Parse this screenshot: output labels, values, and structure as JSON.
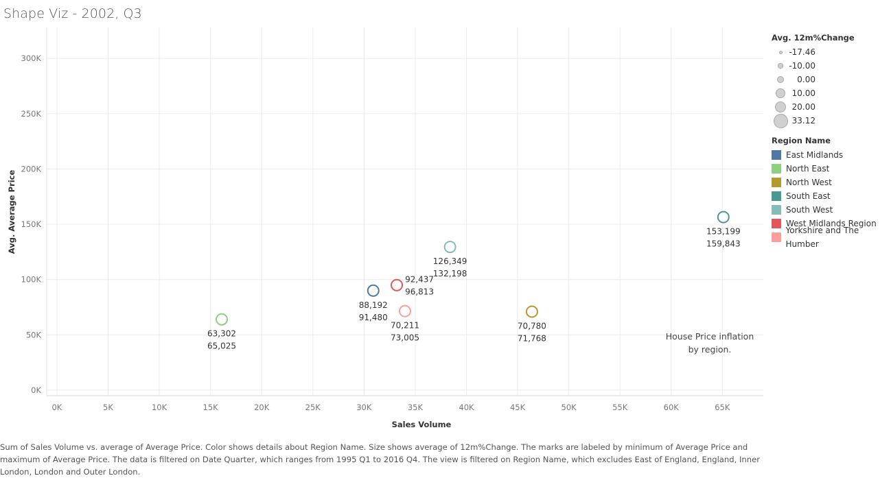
{
  "title": "Shape Viz - 2002, Q3",
  "chart_data": {
    "type": "scatter",
    "xlabel": "Sales Volume",
    "ylabel": "Avg. Average Price",
    "xlim": [
      -1000,
      69000
    ],
    "ylim": [
      -5000,
      328000
    ],
    "x_ticks": [
      0,
      5000,
      10000,
      15000,
      20000,
      25000,
      30000,
      35000,
      40000,
      45000,
      50000,
      55000,
      60000,
      65000
    ],
    "x_tick_labels": [
      "0K",
      "5K",
      "10K",
      "15K",
      "20K",
      "25K",
      "30K",
      "35K",
      "40K",
      "45K",
      "50K",
      "55K",
      "60K",
      "65K"
    ],
    "y_ticks": [
      0,
      50000,
      100000,
      150000,
      200000,
      250000,
      300000
    ],
    "y_tick_labels": [
      "0K",
      "50K",
      "100K",
      "150K",
      "200K",
      "250K",
      "300K"
    ],
    "grid": true,
    "annotation": [
      "House Price inflation",
      "by region."
    ],
    "points": [
      {
        "region": "North East",
        "x": 16100,
        "y": 64000,
        "label": [
          "63,302",
          "65,025"
        ],
        "label_pos": "below"
      },
      {
        "region": "East Midlands",
        "x": 30900,
        "y": 90000,
        "label": [
          "88,192",
          "91,480"
        ],
        "label_pos": "below"
      },
      {
        "region": "West Midlands Region",
        "x": 33200,
        "y": 95000,
        "label": [
          "92,437",
          "96,813"
        ],
        "label_pos": "right"
      },
      {
        "region": "Yorkshire and The Humber",
        "x": 34000,
        "y": 71500,
        "label": [
          "70,211",
          "73,005"
        ],
        "label_pos": "below"
      },
      {
        "region": "South West",
        "x": 38400,
        "y": 129500,
        "label": [
          "126,349",
          "132,198"
        ],
        "label_pos": "below"
      },
      {
        "region": "North West",
        "x": 46400,
        "y": 71000,
        "label": [
          "70,780",
          "71,768"
        ],
        "label_pos": "below"
      },
      {
        "region": "South East",
        "x": 65100,
        "y": 156500,
        "label": [
          "153,199",
          "159,843"
        ],
        "label_pos": "below"
      }
    ]
  },
  "size_legend": {
    "title": "Avg. 12m%Change",
    "items": [
      {
        "label": "-17.46",
        "value": -17.46
      },
      {
        "label": "-10.00",
        "value": -10.0
      },
      {
        "label": "0.00",
        "value": 0.0
      },
      {
        "label": "10.00",
        "value": 10.0
      },
      {
        "label": "20.00",
        "value": 20.0
      },
      {
        "label": "33.12",
        "value": 33.12
      }
    ]
  },
  "color_legend": {
    "title": "Region Name",
    "items": [
      {
        "label": "East Midlands",
        "color": "#4e79a7"
      },
      {
        "label": "North East",
        "color": "#8cd17d"
      },
      {
        "label": "North West",
        "color": "#b6992d"
      },
      {
        "label": "South East",
        "color": "#499894"
      },
      {
        "label": "South West",
        "color": "#86bcb6"
      },
      {
        "label": "West Midlands Region",
        "color": "#e15759"
      },
      {
        "label": "Yorkshire and The Humber",
        "color": "#ff9d9a"
      }
    ]
  },
  "footer": "Sum of Sales Volume vs. average of Average Price.  Color shows details about Region Name.  Size shows average of 12m%Change.  The marks are labeled by minimum of Average Price and maximum of Average Price. The data is filtered on Date Quarter, which ranges from 1995 Q1 to 2016 Q4. The view is filtered on Region Name, which excludes East of England, England, Inner London, London and Outer London."
}
